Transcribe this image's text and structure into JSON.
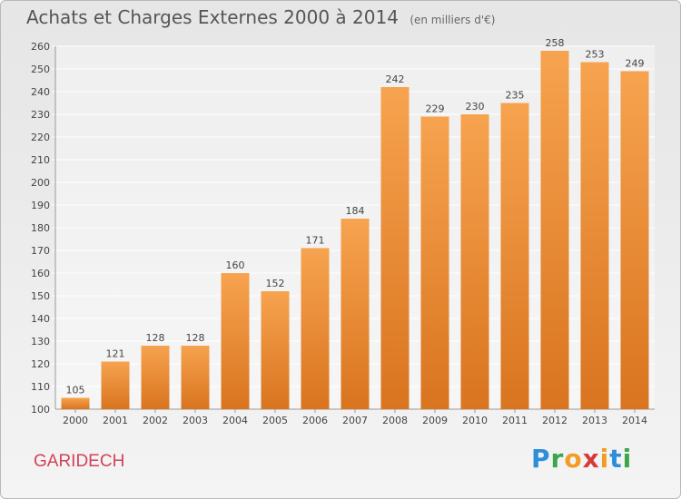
{
  "header": {
    "title": "Achats et Charges Externes 2000 à 2014",
    "subtitle": "(en milliers d'€)"
  },
  "footer": {
    "commune": "GARIDECH"
  },
  "brand": {
    "logo_text": "Proxiti",
    "letter_colors": [
      "#2f8ed8",
      "#3da64a",
      "#f39c25",
      "#d83a3a",
      "#f39c25",
      "#2f8ed8",
      "#3da64a"
    ]
  },
  "colors": {
    "bar_top": "#f7a34f",
    "bar_bottom": "#d9741f",
    "title": "#555555",
    "commune": "#d2415a"
  },
  "chart_data": {
    "type": "bar",
    "categories": [
      "2000",
      "2001",
      "2002",
      "2003",
      "2004",
      "2005",
      "2006",
      "2007",
      "2008",
      "2009",
      "2010",
      "2011",
      "2012",
      "2013",
      "2014"
    ],
    "values": [
      105,
      121,
      128,
      128,
      160,
      152,
      171,
      184,
      242,
      229,
      230,
      235,
      258,
      253,
      249
    ],
    "value_labels": [
      "105",
      "121",
      "128",
      "128",
      "160",
      "152",
      "171",
      "184",
      "242",
      "229",
      "230",
      "235",
      "258",
      "253",
      "249"
    ],
    "title": "Achats et Charges Externes 2000 à 2014",
    "subtitle": "(en milliers d'€)",
    "xlabel": "",
    "ylabel": "",
    "ylim": [
      100,
      260
    ],
    "yticks": [
      "100",
      "110",
      "120",
      "130",
      "140",
      "150",
      "160",
      "170",
      "180",
      "190",
      "200",
      "210",
      "220",
      "230",
      "240",
      "250",
      "260"
    ],
    "grid": true
  }
}
